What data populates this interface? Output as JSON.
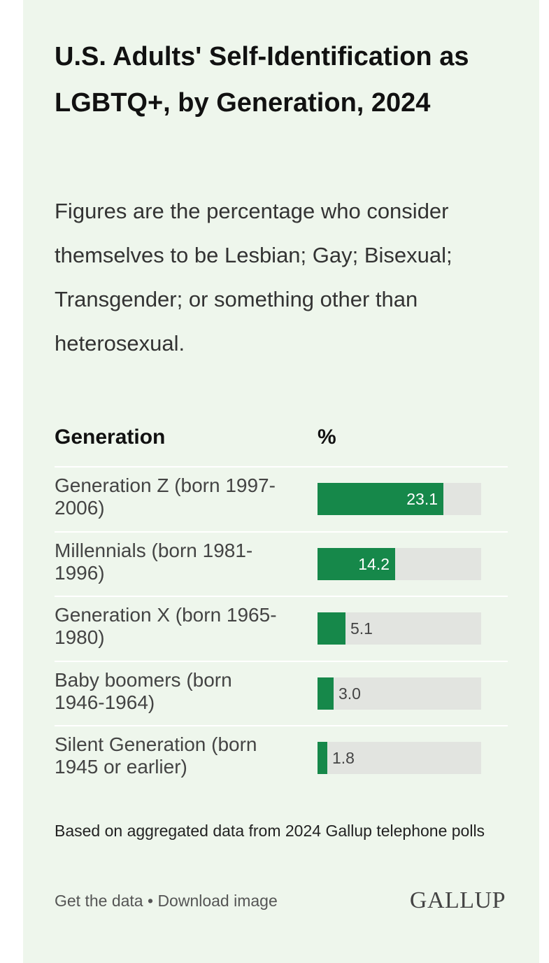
{
  "header": {
    "title": "U.S. Adults' Self-Identification as LGBTQ+, by Generation, 2024",
    "subtitle": "Figures are the percentage who consider themselves to be Lesbian; Gay; Bisexual; Transgender; or something other than heterosexual."
  },
  "chart_data": {
    "type": "bar",
    "orientation": "horizontal",
    "column_headers": [
      "Generation",
      "%"
    ],
    "categories": [
      "Generation Z (born 1997-2006)",
      "Millennials (born 1981-1996)",
      "Generation X (born 1965-1980)",
      "Baby boomers (born 1946-1964)",
      "Silent Generation (born 1945 or earlier)"
    ],
    "value_labels": [
      "23.1",
      "14.2",
      "5.1",
      "3.0",
      "1.8"
    ],
    "values": [
      23.1,
      14.2,
      5.1,
      3.0,
      1.8
    ],
    "xlim": [
      0,
      30
    ],
    "bar_color": "#16884a",
    "track_color": "#e2e4e0"
  },
  "footnote": "Based on aggregated data from 2024 Gallup telephone polls",
  "footer": {
    "get_data": "Get the data",
    "separator": "•",
    "download": "Download image",
    "logo": "GALLUP"
  }
}
